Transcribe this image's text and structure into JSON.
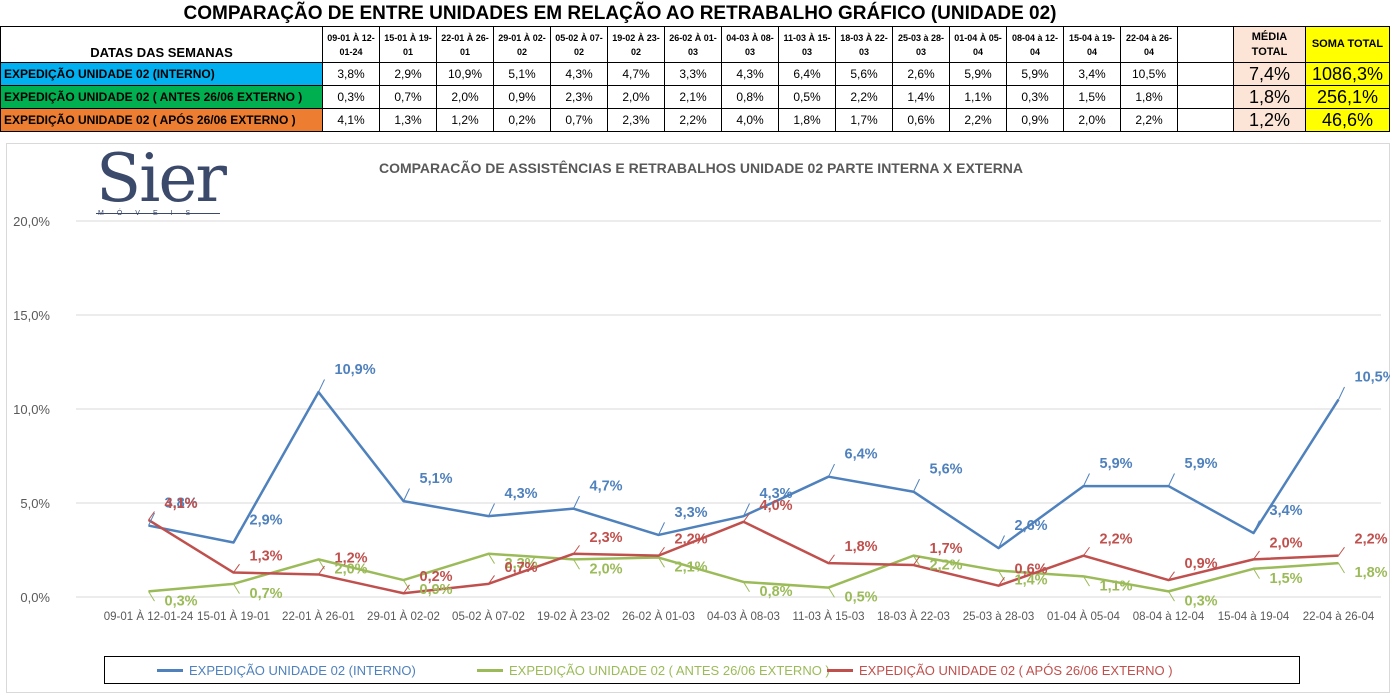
{
  "title": "COMPARAÇÃO DE ENTRE UNIDADES EM RELAÇÃO AO RETRABALHO GRÁFICO (UNIDADE 02)",
  "table": {
    "corner_label": "DATAS DAS SEMANAS",
    "weeks": [
      "09-01 À 12-01-24",
      "15-01 À 19-01",
      "22-01 À 26-01",
      "29-01 À 02-02",
      "05-02 À 07-02",
      "19-02 À 23-02",
      "26-02 À 01-03",
      "04-03 À 08-03",
      "11-03 À 15-03",
      "18-03 À 22-03",
      "25-03 à 28-03",
      "01-04 À 05-04",
      "08-04 à 12-04",
      "15-04 à 19-04",
      "22-04 à 26-04"
    ],
    "avg_header": "MÉDIA TOTAL",
    "sum_header": "SOMA TOTAL",
    "rows": [
      {
        "label": "EXPEDIÇÃO UNIDADE 02 (INTERNO)",
        "color": "#00b0f0",
        "values": [
          "3,8%",
          "2,9%",
          "10,9%",
          "5,1%",
          "4,3%",
          "4,7%",
          "3,3%",
          "4,3%",
          "6,4%",
          "5,6%",
          "2,6%",
          "5,9%",
          "5,9%",
          "3,4%",
          "10,5%"
        ],
        "avg": "7,4%",
        "sum": "1086,3%"
      },
      {
        "label": "EXPEDIÇÃO UNIDADE 02 ( ANTES 26/06 EXTERNO )",
        "color": "#00b050",
        "values": [
          "0,3%",
          "0,7%",
          "2,0%",
          "0,9%",
          "2,3%",
          "2,0%",
          "2,1%",
          "0,8%",
          "0,5%",
          "2,2%",
          "1,4%",
          "1,1%",
          "0,3%",
          "1,5%",
          "1,8%"
        ],
        "avg": "1,8%",
        "sum": "256,1%"
      },
      {
        "label": "EXPEDIÇÃO UNIDADE 02 ( APÓS 26/06 EXTERNO )",
        "color": "#ed7d31",
        "values": [
          "4,1%",
          "1,3%",
          "1,2%",
          "0,2%",
          "0,7%",
          "2,3%",
          "2,2%",
          "4,0%",
          "1,8%",
          "1,7%",
          "0,6%",
          "2,2%",
          "0,9%",
          "2,0%",
          "2,2%"
        ],
        "avg": "1,2%",
        "sum": "46,6%"
      }
    ]
  },
  "logo": {
    "name": "Sier",
    "sub": "MÓVEIS"
  },
  "chart_data": {
    "type": "line",
    "title": "COMPARACÃO DE ASSISTÊNCIAS E RETRABALHOS UNIDADE 02 PARTE INTERNA X EXTERNA",
    "categories": [
      "09-01 À 12-01-24",
      "15-01 À 19-01",
      "22-01 À 26-01",
      "29-01 À 02-02",
      "05-02 À 07-02",
      "19-02 À 23-02",
      "26-02 À 01-03",
      "04-03 À 08-03",
      "11-03 À 15-03",
      "18-03 À 22-03",
      "25-03 à 28-03",
      "01-04 À 05-04",
      "08-04 à 12-04",
      "15-04 à 19-04",
      "22-04 à 26-04"
    ],
    "ylim": [
      0,
      20
    ],
    "yticks": [
      "0,0%",
      "5,0%",
      "10,0%",
      "15,0%",
      "20,0%"
    ],
    "grid": true,
    "legend": "bottom",
    "series": [
      {
        "name": "EXPEDIÇÃO UNIDADE 02 (INTERNO)",
        "color": "#4f81bd",
        "values": [
          3.8,
          2.9,
          10.9,
          5.1,
          4.3,
          4.7,
          3.3,
          4.3,
          6.4,
          5.6,
          2.6,
          5.9,
          5.9,
          3.4,
          10.5
        ],
        "labels": [
          "3,8%",
          "2,9%",
          "10,9%",
          "5,1%",
          "4,3%",
          "4,7%",
          "3,3%",
          "4,3%",
          "6,4%",
          "5,6%",
          "2,6%",
          "5,9%",
          "5,9%",
          "3,4%",
          "10,5%"
        ]
      },
      {
        "name": "EXPEDIÇÃO UNIDADE 02 ( ANTES 26/06 EXTERNO )",
        "color": "#9bbb59",
        "values": [
          0.3,
          0.7,
          2.0,
          0.9,
          2.3,
          2.0,
          2.1,
          0.8,
          0.5,
          2.2,
          1.4,
          1.1,
          0.3,
          1.5,
          1.8
        ],
        "labels": [
          "0,3%",
          "0,7%",
          "2,0%",
          "0,9%",
          "2,3%",
          "2,0%",
          "2,1%",
          "0,8%",
          "0,5%",
          "2,2%",
          "1,4%",
          "1,1%",
          "0,3%",
          "1,5%",
          "1,8%"
        ]
      },
      {
        "name": "EXPEDIÇÃO UNIDADE 02 ( APÓS 26/06 EXTERNO )",
        "color": "#c0504d",
        "values": [
          4.1,
          1.3,
          1.2,
          0.2,
          0.7,
          2.3,
          2.2,
          4.0,
          1.8,
          1.7,
          0.6,
          2.2,
          0.9,
          2.0,
          2.2
        ],
        "labels": [
          "4,1%",
          "1,3%",
          "1,2%",
          "0,2%",
          "0,7%",
          "2,3%",
          "2,2%",
          "4,0%",
          "1,8%",
          "1,7%",
          "0,6%",
          "2,2%",
          "0,9%",
          "2,0%",
          "2,2%"
        ]
      }
    ]
  }
}
